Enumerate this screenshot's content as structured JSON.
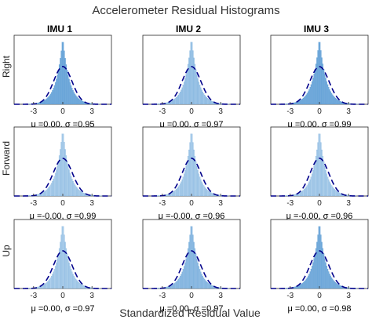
{
  "chart_data": {
    "type": "histogram-grid",
    "title": "Accelerometer Residual Histograms",
    "xlabel": "Standardized Residual Value",
    "columns": [
      "IMU 1",
      "IMU 2",
      "IMU 3"
    ],
    "rows": [
      "Right",
      "Forward",
      "Up"
    ],
    "xlim": [
      -5,
      5
    ],
    "xticks": [
      -3,
      0,
      3
    ],
    "tick_labels": [
      "-3",
      "0",
      "3"
    ],
    "colors": {
      "bar_light": "#c6dff2",
      "bar_dark": "#5b9bd5",
      "edge": "#4f95d0",
      "fit": "#00008b"
    },
    "panels": [
      {
        "row": 0,
        "col": 0,
        "mu": 0.0,
        "sigma": 0.95,
        "stat": "μ =0.00, σ =0.95",
        "shade": 0.8
      },
      {
        "row": 0,
        "col": 1,
        "mu": 0.0,
        "sigma": 0.97,
        "stat": "μ =0.00, σ =0.97",
        "shade": 0.35
      },
      {
        "row": 0,
        "col": 2,
        "mu": 0.0,
        "sigma": 0.99,
        "stat": "μ =0.00, σ =0.99",
        "shade": 0.8
      },
      {
        "row": 1,
        "col": 0,
        "mu": -0.0,
        "sigma": 0.99,
        "stat": "μ =-0.00, σ =0.99",
        "shade": 0.2
      },
      {
        "row": 1,
        "col": 1,
        "mu": -0.0,
        "sigma": 0.96,
        "stat": "μ =-0.00, σ =0.96",
        "shade": 0.2
      },
      {
        "row": 1,
        "col": 2,
        "mu": -0.0,
        "sigma": 0.96,
        "stat": "μ =-0.00, σ =0.96",
        "shade": 0.2
      },
      {
        "row": 2,
        "col": 0,
        "mu": 0.0,
        "sigma": 0.97,
        "stat": "μ =0.00, σ =0.97",
        "shade": 0.2
      },
      {
        "row": 2,
        "col": 1,
        "mu": 0.0,
        "sigma": 0.97,
        "stat": "μ =0.00, σ =0.97",
        "shade": 0.5
      },
      {
        "row": 2,
        "col": 2,
        "mu": 0.0,
        "sigma": 0.98,
        "stat": "μ =0.00, σ =0.98",
        "shade": 0.75
      }
    ]
  }
}
